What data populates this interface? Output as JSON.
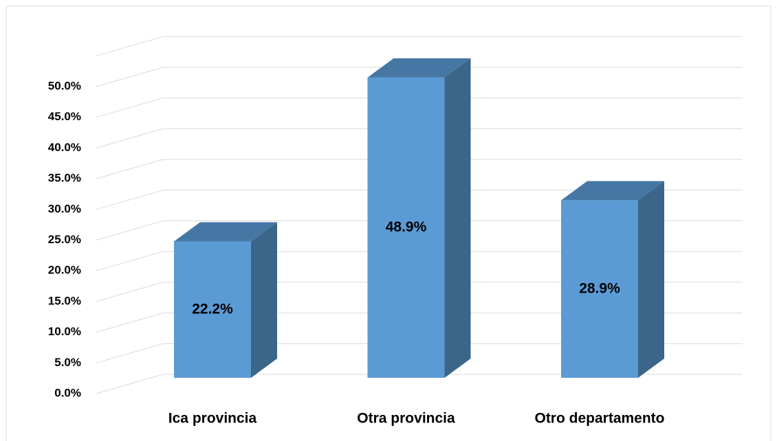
{
  "chart_data": {
    "type": "bar3d",
    "categories": [
      "Ica provincia",
      "Otra provincia",
      "Otro departamento"
    ],
    "values": [
      22.2,
      48.9,
      28.9
    ],
    "value_labels": [
      "22.2%",
      "48.9%",
      "28.9%"
    ],
    "color": "#5b9bd5",
    "ylim": [
      0,
      55
    ],
    "yticks": [
      {
        "value": 0,
        "label": "0.0%"
      },
      {
        "value": 5,
        "label": "5.0%"
      },
      {
        "value": 10,
        "label": "10.0%"
      },
      {
        "value": 15,
        "label": "15.0%"
      },
      {
        "value": 20,
        "label": "20.0%"
      },
      {
        "value": 25,
        "label": "25.0%"
      },
      {
        "value": 30,
        "label": "30.0%"
      },
      {
        "value": 35,
        "label": "35.0%"
      },
      {
        "value": 40,
        "label": "40.0%"
      },
      {
        "value": 45,
        "label": "45.0%"
      },
      {
        "value": 50,
        "label": "50.0%"
      }
    ],
    "grid": true
  }
}
